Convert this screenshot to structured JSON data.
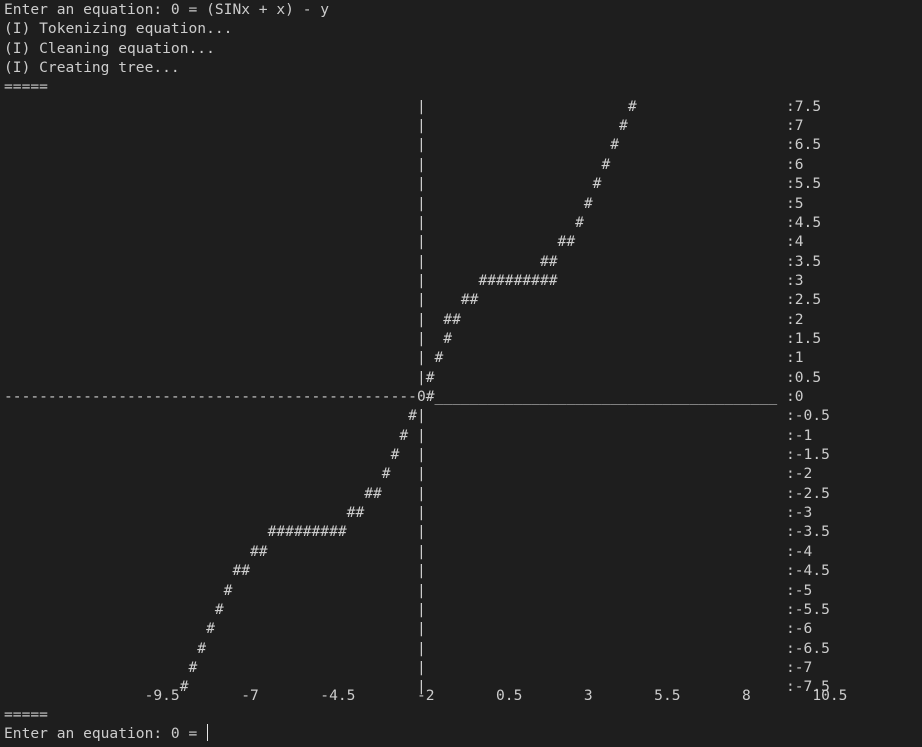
{
  "terminal": {
    "lines": [
      "Enter an equation: 0 = (SINx + x) - y",
      "(I) Tokenizing equation...",
      "(I) Cleaning equation...",
      "(I) Creating tree...",
      "=====",
      "                                               |                       #                 :7.5",
      "                                               |                      #                  :7",
      "                                               |                     #                   :6.5",
      "                                               |                    #                    :6",
      "                                               |                   #                     :5.5",
      "                                               |                  #                      :5",
      "                                               |                 #                       :4.5",
      "                                               |               ##                        :4",
      "                                               |             ##                          :3.5",
      "                                               |      #########                          :3",
      "                                               |    ##                                   :2.5",
      "                                               |  ##                                     :2",
      "                                               |  #                                      :1.5",
      "                                               | #                                       :1",
      "                                               |#                                        :0.5",
      "-----------------------------------------------0#_______________________________________ :0",
      "                                              #|                                         :-0.5",
      "                                             # |                                         :-1",
      "                                            #  |                                         :-1.5",
      "                                           #   |                                         :-2",
      "                                         ##    |                                         :-2.5",
      "                                       ##      |                                         :-3",
      "                              #########        |                                         :-3.5",
      "                            ##                 |                                         :-4",
      "                          ##                   |                                         :-4.5",
      "                         #                     |                                         :-5",
      "                        #                      |                                         :-5.5",
      "                       #                       |                                         :-6",
      "                      #                        |                                         :-6.5",
      "                     #                         |                                         :-7",
      "                    #                          |                                         :-7.5",
      "                -9.5       -7       -4.5       -2       0.5       3       5.5       8       10.5",
      "====="
    ],
    "prompt": "Enter an equation: 0 = ",
    "input_value": ""
  }
}
